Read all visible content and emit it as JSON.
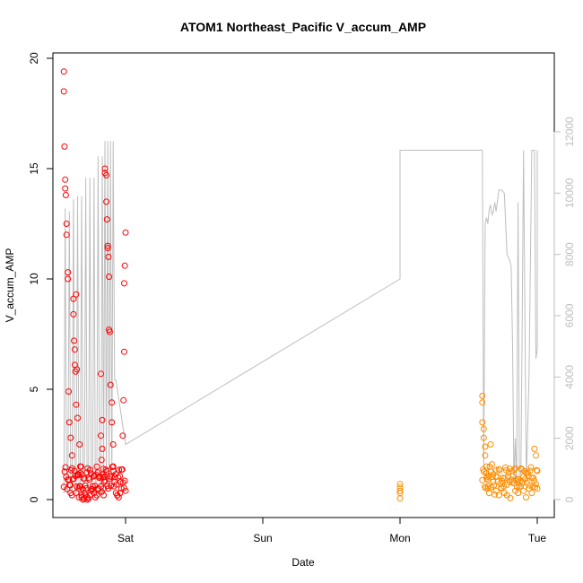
{
  "chart_data": {
    "type": "scatter",
    "title": "ATOM1 Northeast_Pacific V_accum_AMP",
    "xlabel": "Date",
    "ylabel": "V_accum_AMP",
    "x_tick_labels": [
      "Sat",
      "Sun",
      "Mon",
      "Tue"
    ],
    "x_tick_days": [
      1,
      2,
      3,
      4
    ],
    "xlim_days": [
      0.44,
      4.1
    ],
    "ylim": [
      0,
      20
    ],
    "y_ticks": [
      0,
      5,
      10,
      15,
      20
    ],
    "y2lim": [
      0,
      12000
    ],
    "y2_ticks": [
      0,
      2000,
      4000,
      6000,
      8000,
      10000,
      12000
    ],
    "grid": false,
    "legend": "none",
    "colors": {
      "series1": "#ff0000",
      "series2": "#ff8c00",
      "line": "#bebebe",
      "axis": "#000000",
      "right_axis": "#bebebe"
    },
    "series": [
      {
        "values_x_days": [
          0.55,
          0.55,
          0.555,
          0.56,
          0.56,
          0.565,
          0.57,
          0.57,
          0.58,
          0.58,
          0.585,
          0.59,
          0.6,
          0.6,
          0.61,
          0.61,
          0.62,
          0.62,
          0.625,
          0.63,
          0.63,
          0.635,
          0.64,
          0.64,
          0.645,
          0.65,
          0.65,
          0.66,
          0.66,
          0.665,
          0.67,
          0.67,
          0.68,
          0.68,
          0.69,
          0.7,
          0.7,
          0.71,
          0.72,
          0.72,
          0.73,
          0.74,
          0.75,
          0.76,
          0.77,
          0.78,
          0.79,
          0.8,
          0.81,
          0.82,
          0.82,
          0.825,
          0.83,
          0.83,
          0.835,
          0.84,
          0.84,
          0.845,
          0.85,
          0.85,
          0.86,
          0.86,
          0.865,
          0.87,
          0.87,
          0.875,
          0.88,
          0.88,
          0.885,
          0.89,
          0.9,
          0.9,
          0.91,
          0.91,
          0.92,
          0.93,
          0.94,
          0.95,
          0.96,
          0.97,
          0.98,
          0.985,
          0.99,
          0.99,
          0.995,
          1.0,
          1.0
        ],
        "values": [
          19.4,
          18.5,
          16.0,
          14.5,
          14.1,
          13.8,
          12.5,
          12.0,
          10.3,
          10.0,
          4.9,
          3.5,
          2.8,
          0.3,
          0.2,
          2.0,
          9.1,
          8.4,
          7.2,
          6.8,
          6.1,
          5.8,
          4.3,
          9.3,
          5.9,
          3.7,
          1.1,
          0.5,
          0.1,
          2.5,
          1.5,
          0.6,
          0.2,
          0.1,
          0.0,
          0.05,
          0.3,
          0.2,
          0.1,
          0.0,
          0.05,
          0.2,
          0.4,
          0.6,
          0.3,
          0.1,
          0.2,
          0.5,
          1.0,
          5.7,
          2.9,
          1.8,
          3.6,
          2.3,
          1.0,
          0.5,
          0.2,
          0.8,
          14.8,
          15.0,
          14.7,
          13.5,
          12.7,
          11.5,
          11.4,
          11.0,
          10.1,
          7.7,
          7.6,
          5.2,
          4.4,
          3.5,
          2.5,
          1.5,
          0.8,
          0.3,
          0.2,
          0.1,
          0.3,
          0.5,
          2.9,
          4.5,
          6.7,
          9.8,
          10.6,
          12.1,
          0.4
        ]
      },
      {
        "values_x_days": [
          3.0,
          3.0,
          3.0,
          3.0,
          3.0,
          3.6,
          3.6,
          3.6,
          3.61,
          3.61,
          3.62,
          3.62,
          3.63,
          3.63,
          3.64,
          3.64,
          3.65,
          3.66,
          3.67,
          3.68,
          3.7,
          3.72,
          3.74,
          3.76,
          3.78,
          3.8,
          3.82,
          3.84,
          3.86,
          3.88,
          3.9,
          3.92,
          3.94,
          3.96,
          3.98,
          3.99,
          4.0,
          4.0
        ],
        "values": [
          0.7,
          0.55,
          0.4,
          0.3,
          0.05,
          4.7,
          4.4,
          3.5,
          3.2,
          2.8,
          2.4,
          2.0,
          1.5,
          1.2,
          0.9,
          0.5,
          0.3,
          2.5,
          1.6,
          0.8,
          0.4,
          0.2,
          0.5,
          0.3,
          0.2,
          1.4,
          0.8,
          0.4,
          0.3,
          0.6,
          0.4,
          1.2,
          0.5,
          0.3,
          2.3,
          2.0,
          1.3,
          0.5
        ]
      }
    ],
    "line_y2": {
      "values_x_days": [
        0.55,
        0.56,
        0.57,
        0.58,
        0.59,
        0.6,
        0.61,
        0.62,
        0.63,
        0.64,
        0.65,
        0.66,
        0.67,
        0.68,
        0.69,
        0.7,
        0.71,
        0.72,
        0.73,
        0.74,
        0.75,
        0.76,
        0.77,
        0.78,
        0.79,
        0.8,
        0.81,
        0.82,
        0.83,
        0.84,
        0.85,
        0.86,
        0.87,
        0.88,
        0.89,
        0.9,
        0.91,
        0.92,
        0.93,
        0.94,
        0.95,
        0.96,
        0.97,
        0.98,
        0.99,
        1.0,
        1.0,
        3.0,
        3.0,
        3.01,
        3.6,
        3.61,
        3.62,
        3.63,
        3.64,
        3.65,
        3.66,
        3.67,
        3.68,
        3.69,
        3.7,
        3.72,
        3.74,
        3.76,
        3.78,
        3.8,
        3.81,
        3.82,
        3.83,
        3.84,
        3.85,
        3.86,
        3.87,
        3.88,
        3.89,
        3.9,
        3.92,
        3.94,
        3.96,
        3.98,
        3.99,
        4.0,
        4.0
      ],
      "values": [
        200,
        9500,
        300,
        200,
        9400,
        300,
        200,
        9800,
        300,
        200,
        9900,
        200,
        300,
        9900,
        200,
        300,
        10500,
        200,
        250,
        10500,
        200,
        300,
        10500,
        300,
        200,
        11200,
        300,
        200,
        11200,
        300,
        11700,
        300,
        11700,
        300,
        11700,
        400,
        11700,
        3900,
        3900,
        3600,
        3300,
        3000,
        2700,
        2400,
        2100,
        1800,
        1800,
        7200,
        11400,
        11400,
        11400,
        800,
        9000,
        9200,
        9000,
        9500,
        9600,
        9300,
        9400,
        9700,
        9400,
        10100,
        10100,
        10000,
        8000,
        7800,
        7600,
        5000,
        600,
        2000,
        400,
        9700,
        600,
        400,
        5700,
        11400,
        600,
        4000,
        11400,
        11400,
        4600,
        4900,
        11400
      ]
    }
  }
}
